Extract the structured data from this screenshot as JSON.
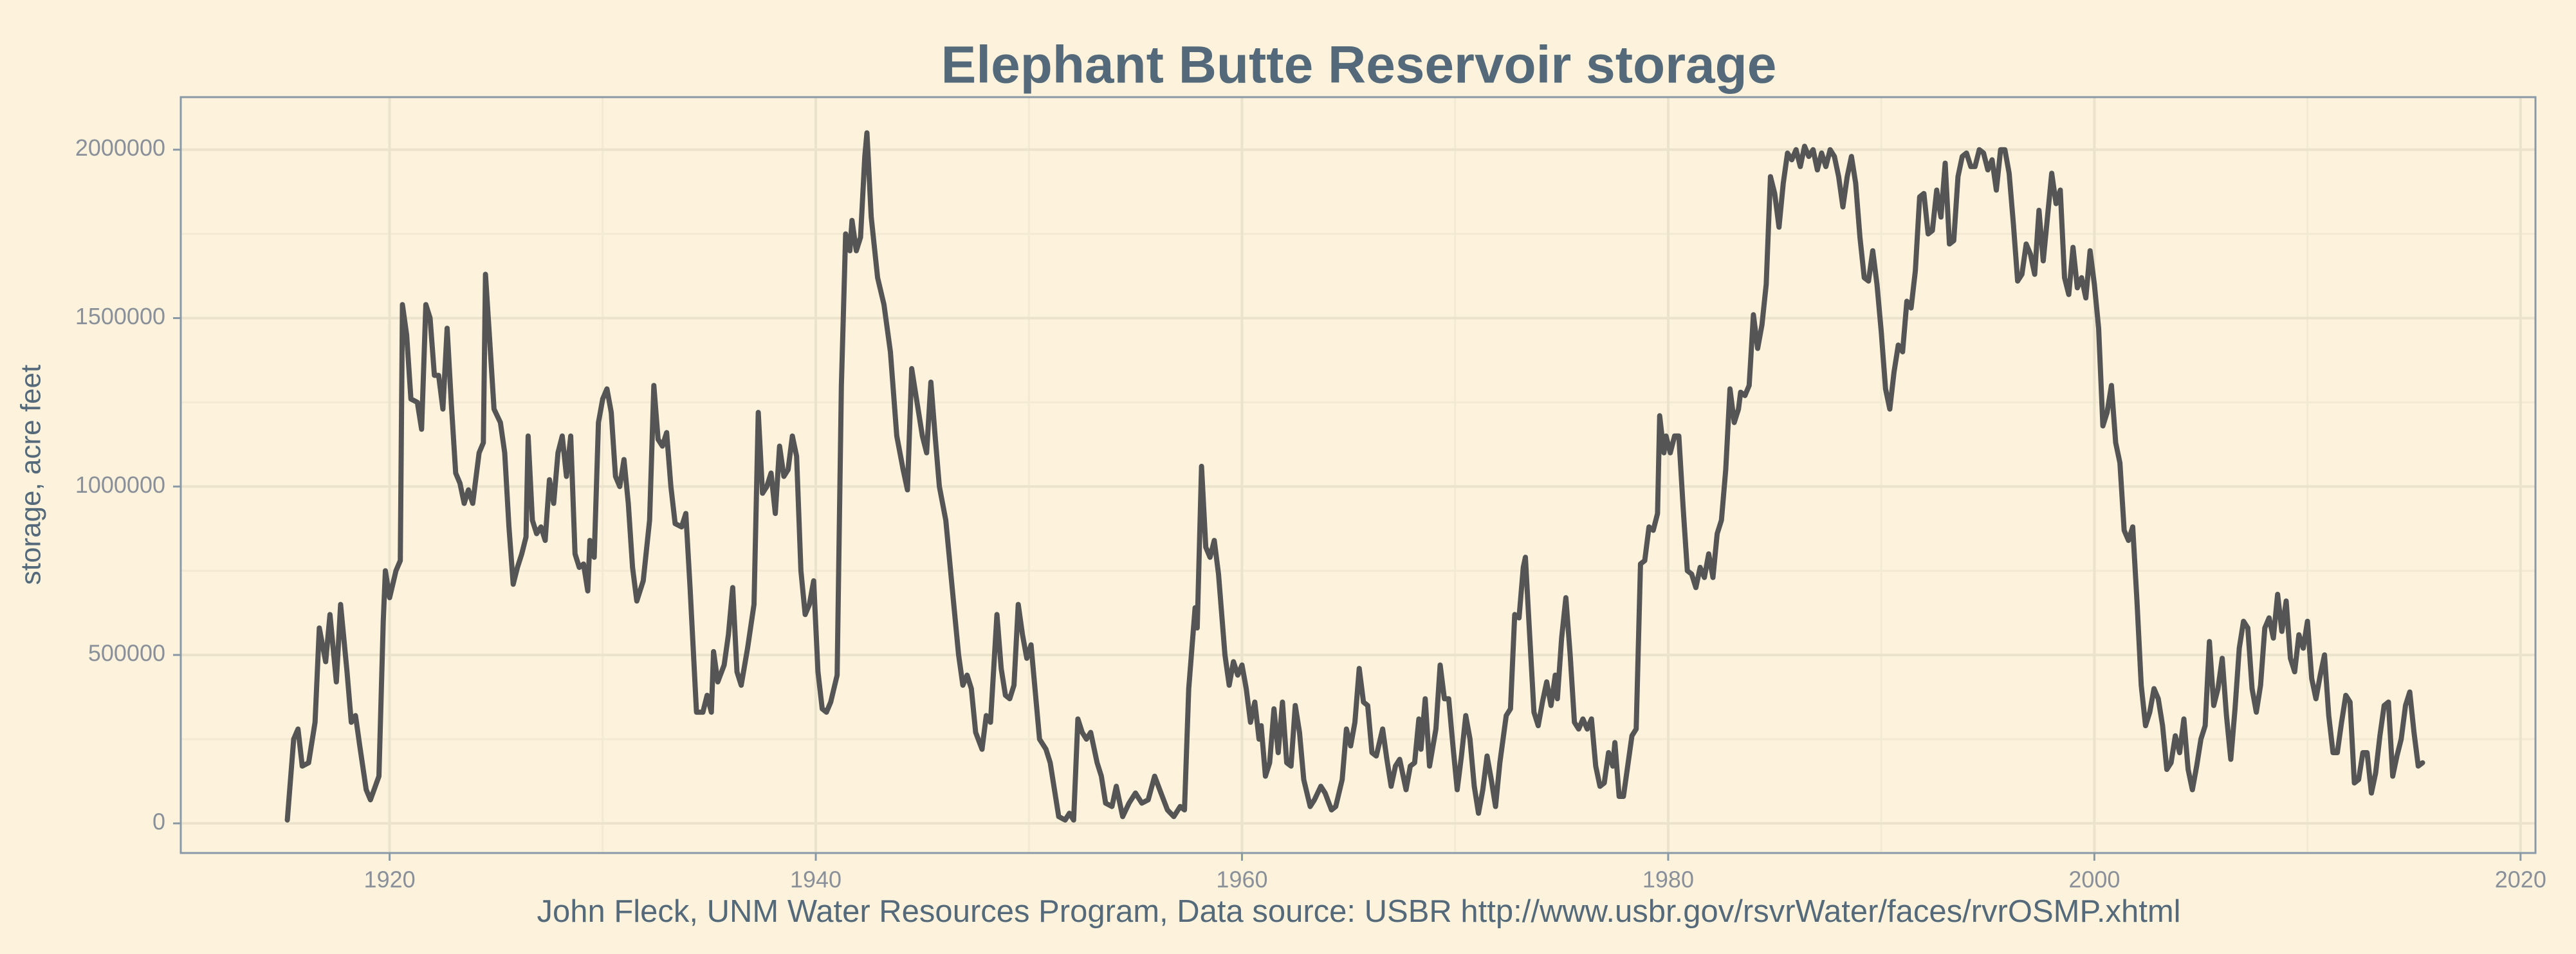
{
  "chart_data": {
    "type": "line",
    "title": "Elephant Butte Reservoir storage",
    "ylabel": "storage, acre feet",
    "caption": "John Fleck, UNM Water Resources Program, Data source: USBR http://www.usbr.gov/rsvrWater/faces/rvrOSMP.xhtml",
    "xlim": [
      1910.2,
      2020.7
    ],
    "xticks": [
      1920,
      1940,
      1960,
      1980,
      2000,
      2020
    ],
    "ylim": [
      -88000,
      2156000
    ],
    "yticks": [
      0,
      500000,
      1000000,
      1500000,
      2000000
    ],
    "grid": true,
    "series": [
      {
        "color": "#555555",
        "x": [
          1915.2,
          1915.5,
          1915.7,
          1915.9,
          1916.2,
          1916.5,
          1916.7,
          1917.0,
          1917.2,
          1917.5,
          1917.7,
          1918.0,
          1918.2,
          1918.4,
          1918.6,
          1918.9,
          1919.1,
          1919.5,
          1919.7,
          1919.8,
          1920.0,
          1920.3,
          1920.5,
          1920.6,
          1920.8,
          1921.0,
          1921.3,
          1921.5,
          1921.7,
          1921.9,
          1922.1,
          1922.3,
          1922.5,
          1922.7,
          1922.9,
          1923.1,
          1923.3,
          1923.5,
          1923.7,
          1923.9,
          1924.2,
          1924.4,
          1924.5,
          1924.7,
          1924.9,
          1925.2,
          1925.4,
          1925.6,
          1925.8,
          1926.0,
          1926.2,
          1926.4,
          1926.5,
          1926.7,
          1926.9,
          1927.1,
          1927.3,
          1927.5,
          1927.7,
          1927.9,
          1928.1,
          1928.3,
          1928.5,
          1928.7,
          1928.9,
          1929.1,
          1929.3,
          1929.4,
          1929.6,
          1929.8,
          1930.0,
          1930.2,
          1930.4,
          1930.6,
          1930.8,
          1931.0,
          1931.2,
          1931.4,
          1931.6,
          1931.9,
          1932.2,
          1932.4,
          1932.6,
          1932.8,
          1933.0,
          1933.2,
          1933.4,
          1933.7,
          1933.9,
          1934.1,
          1934.4,
          1934.7,
          1934.9,
          1935.1,
          1935.2,
          1935.4,
          1935.7,
          1935.9,
          1936.1,
          1936.3,
          1936.5,
          1936.8,
          1937.1,
          1937.3,
          1937.5,
          1937.7,
          1937.9,
          1938.1,
          1938.3,
          1938.5,
          1938.7,
          1938.9,
          1939.1,
          1939.3,
          1939.5,
          1939.7,
          1939.9,
          1940.1,
          1940.3,
          1940.5,
          1940.7,
          1941.0,
          1941.2,
          1941.4,
          1941.6,
          1941.7,
          1941.9,
          1942.1,
          1942.3,
          1942.4,
          1942.6,
          1942.9,
          1943.2,
          1943.5,
          1943.8,
          1944.1,
          1944.3,
          1944.5,
          1944.7,
          1945.0,
          1945.2,
          1945.4,
          1945.6,
          1945.8,
          1946.1,
          1946.4,
          1946.7,
          1946.9,
          1947.1,
          1947.3,
          1947.5,
          1947.8,
          1948.0,
          1948.2,
          1948.5,
          1948.7,
          1948.9,
          1949.1,
          1949.3,
          1949.5,
          1949.7,
          1949.9,
          1950.1,
          1950.3,
          1950.5,
          1950.8,
          1951.0,
          1951.2,
          1951.4,
          1951.7,
          1951.9,
          1952.1,
          1952.3,
          1952.5,
          1952.7,
          1952.9,
          1953.2,
          1953.4,
          1953.6,
          1953.9,
          1954.1,
          1954.4,
          1954.7,
          1955.0,
          1955.3,
          1955.6,
          1955.9,
          1956.2,
          1956.5,
          1956.8,
          1957.1,
          1957.3,
          1957.5,
          1957.8,
          1957.9,
          1958.1,
          1958.3,
          1958.5,
          1958.7,
          1958.9,
          1959.2,
          1959.4,
          1959.6,
          1959.8,
          1960.0,
          1960.2,
          1960.4,
          1960.6,
          1960.8,
          1960.9,
          1961.1,
          1961.3,
          1961.5,
          1961.7,
          1961.9,
          1962.1,
          1962.3,
          1962.5,
          1962.7,
          1962.9,
          1963.2,
          1963.4,
          1963.7,
          1963.9,
          1964.2,
          1964.4,
          1964.7,
          1964.9,
          1965.1,
          1965.3,
          1965.5,
          1965.7,
          1965.9,
          1966.1,
          1966.3,
          1966.6,
          1966.8,
          1967.0,
          1967.2,
          1967.4,
          1967.7,
          1967.9,
          1968.1,
          1968.3,
          1968.4,
          1968.6,
          1968.8,
          1969.1,
          1969.3,
          1969.5,
          1969.7,
          1969.9,
          1970.1,
          1970.3,
          1970.5,
          1970.7,
          1970.9,
          1971.1,
          1971.3,
          1971.5,
          1971.7,
          1971.9,
          1972.1,
          1972.4,
          1972.6,
          1972.8,
          1973.0,
          1973.2,
          1973.3,
          1973.5,
          1973.7,
          1973.9,
          1974.1,
          1974.3,
          1974.5,
          1974.7,
          1974.8,
          1975.0,
          1975.2,
          1975.4,
          1975.6,
          1975.8,
          1976.0,
          1976.2,
          1976.4,
          1976.6,
          1976.8,
          1977.0,
          1977.2,
          1977.4,
          1977.5,
          1977.7,
          1977.9,
          1978.1,
          1978.3,
          1978.5,
          1978.7,
          1978.9,
          1979.1,
          1979.3,
          1979.5,
          1979.6,
          1979.8,
          1979.9,
          1980.1,
          1980.3,
          1980.5,
          1980.7,
          1980.9,
          1981.1,
          1981.3,
          1981.5,
          1981.7,
          1981.9,
          1982.1,
          1982.3,
          1982.5,
          1982.7,
          1982.9,
          1983.1,
          1983.3,
          1983.4,
          1983.6,
          1983.8,
          1984.0,
          1984.2,
          1984.4,
          1984.6,
          1984.8,
          1985.0,
          1985.2,
          1985.4,
          1985.6,
          1985.8,
          1986.0,
          1986.2,
          1986.4,
          1986.6,
          1986.8,
          1987.0,
          1987.2,
          1987.4,
          1987.6,
          1987.8,
          1988.0,
          1988.2,
          1988.4,
          1988.6,
          1988.8,
          1989.0,
          1989.2,
          1989.4,
          1989.6,
          1989.8,
          1990.0,
          1990.2,
          1990.4,
          1990.6,
          1990.8,
          1991.0,
          1991.2,
          1991.4,
          1991.6,
          1991.8,
          1992.0,
          1992.2,
          1992.4,
          1992.6,
          1992.8,
          1993.0,
          1993.2,
          1993.4,
          1993.6,
          1993.8,
          1994.0,
          1994.2,
          1994.4,
          1994.6,
          1994.8,
          1995.0,
          1995.2,
          1995.4,
          1995.6,
          1995.8,
          1996.0,
          1996.2,
          1996.4,
          1996.6,
          1996.8,
          1997.0,
          1997.2,
          1997.4,
          1997.6,
          1997.8,
          1998.0,
          1998.2,
          1998.4,
          1998.6,
          1998.8,
          1999.0,
          1999.2,
          1999.4,
          1999.6,
          1999.8,
          2000.0,
          2000.2,
          2000.4,
          2000.6,
          2000.8,
          2001.0,
          2001.2,
          2001.4,
          2001.6,
          2001.8,
          2002.0,
          2002.2,
          2002.4,
          2002.6,
          2002.8,
          2003.0,
          2003.2,
          2003.4,
          2003.6,
          2003.8,
          2004.0,
          2004.2,
          2004.4,
          2004.6,
          2004.8,
          2005.0,
          2005.2,
          2005.4,
          2005.6,
          2005.8,
          2006.0,
          2006.2,
          2006.4,
          2006.6,
          2006.8,
          2007.0,
          2007.2,
          2007.4,
          2007.6,
          2007.8,
          2008.0,
          2008.2,
          2008.4,
          2008.6,
          2008.8,
          2009.0,
          2009.2,
          2009.4,
          2009.6,
          2009.8,
          2010.0,
          2010.2,
          2010.4,
          2010.6,
          2010.8,
          2011.0,
          2011.2,
          2011.4,
          2011.6,
          2011.8,
          2012.0,
          2012.2,
          2012.4,
          2012.6,
          2012.8,
          2013.0,
          2013.2,
          2013.4,
          2013.6,
          2013.8,
          2014.0,
          2014.2,
          2014.4,
          2014.6,
          2014.8,
          2015.0,
          2015.2,
          2015.4
        ],
        "values": [
          10000,
          250000,
          280000,
          170000,
          180000,
          300000,
          580000,
          480000,
          620000,
          420000,
          650000,
          450000,
          300000,
          320000,
          230000,
          100000,
          70000,
          140000,
          600000,
          750000,
          670000,
          750000,
          780000,
          1540000,
          1450000,
          1260000,
          1250000,
          1170000,
          1540000,
          1500000,
          1330000,
          1330000,
          1230000,
          1470000,
          1240000,
          1040000,
          1010000,
          950000,
          990000,
          950000,
          1100000,
          1130000,
          1630000,
          1430000,
          1230000,
          1190000,
          1100000,
          880000,
          710000,
          760000,
          800000,
          850000,
          1150000,
          900000,
          860000,
          880000,
          840000,
          1020000,
          950000,
          1100000,
          1150000,
          1030000,
          1150000,
          800000,
          760000,
          770000,
          690000,
          840000,
          790000,
          1190000,
          1260000,
          1290000,
          1220000,
          1030000,
          1000000,
          1080000,
          950000,
          760000,
          660000,
          720000,
          900000,
          1300000,
          1140000,
          1120000,
          1160000,
          1000000,
          890000,
          880000,
          920000,
          700000,
          330000,
          330000,
          380000,
          330000,
          510000,
          420000,
          470000,
          560000,
          700000,
          450000,
          410000,
          520000,
          650000,
          1220000,
          980000,
          1000000,
          1040000,
          920000,
          1120000,
          1030000,
          1050000,
          1150000,
          1090000,
          750000,
          620000,
          650000,
          720000,
          450000,
          340000,
          330000,
          360000,
          440000,
          1300000,
          1750000,
          1700000,
          1790000,
          1700000,
          1740000,
          1980000,
          2050000,
          1800000,
          1620000,
          1540000,
          1400000,
          1150000,
          1050000,
          990000,
          1350000,
          1270000,
          1150000,
          1100000,
          1310000,
          1150000,
          1000000,
          900000,
          700000,
          500000,
          410000,
          440000,
          400000,
          270000,
          220000,
          320000,
          300000,
          620000,
          460000,
          380000,
          370000,
          410000,
          650000,
          560000,
          490000,
          530000,
          390000,
          250000,
          220000,
          180000,
          100000,
          20000,
          10000,
          30000,
          10000,
          310000,
          270000,
          250000,
          270000,
          180000,
          140000,
          60000,
          50000,
          110000,
          20000,
          60000,
          90000,
          60000,
          70000,
          140000,
          90000,
          40000,
          20000,
          50000,
          40000,
          400000,
          640000,
          580000,
          1060000,
          820000,
          790000,
          840000,
          740000,
          500000,
          410000,
          480000,
          440000,
          470000,
          400000,
          300000,
          360000,
          250000,
          290000,
          140000,
          180000,
          340000,
          210000,
          360000,
          180000,
          170000,
          350000,
          270000,
          130000,
          50000,
          70000,
          110000,
          90000,
          40000,
          50000,
          130000,
          280000,
          230000,
          300000,
          460000,
          360000,
          350000,
          210000,
          200000,
          280000,
          190000,
          110000,
          170000,
          190000,
          100000,
          170000,
          180000,
          310000,
          220000,
          370000,
          170000,
          280000,
          470000,
          370000,
          370000,
          230000,
          100000,
          200000,
          320000,
          250000,
          110000,
          30000,
          100000,
          200000,
          130000,
          50000,
          180000,
          320000,
          340000,
          620000,
          610000,
          760000,
          790000,
          560000,
          330000,
          290000,
          360000,
          420000,
          350000,
          440000,
          370000,
          550000,
          670000,
          500000,
          300000,
          280000,
          310000,
          280000,
          310000,
          170000,
          110000,
          120000,
          210000,
          170000,
          240000,
          80000,
          80000,
          170000,
          260000,
          280000,
          770000,
          780000,
          880000,
          870000,
          920000,
          1210000,
          1100000,
          1150000,
          1100000,
          1150000,
          1150000,
          940000,
          750000,
          740000,
          700000,
          760000,
          730000,
          800000,
          730000,
          860000,
          900000,
          1050000,
          1290000,
          1190000,
          1230000,
          1280000,
          1270000,
          1300000,
          1510000,
          1410000,
          1480000,
          1600000,
          1920000,
          1870000,
          1770000,
          1900000,
          1990000,
          1970000,
          2000000,
          1950000,
          2010000,
          1980000,
          2000000,
          1940000,
          1990000,
          1950000,
          2000000,
          1980000,
          1920000,
          1830000,
          1920000,
          1980000,
          1900000,
          1740000,
          1620000,
          1610000,
          1700000,
          1600000,
          1460000,
          1290000,
          1230000,
          1340000,
          1420000,
          1400000,
          1550000,
          1530000,
          1640000,
          1860000,
          1870000,
          1750000,
          1760000,
          1880000,
          1800000,
          1960000,
          1720000,
          1730000,
          1920000,
          1980000,
          1990000,
          1950000,
          1950000,
          2000000,
          1990000,
          1940000,
          1970000,
          1880000,
          2000000,
          2000000,
          1930000,
          1780000,
          1610000,
          1630000,
          1720000,
          1690000,
          1630000,
          1820000,
          1670000,
          1800000,
          1930000,
          1840000,
          1880000,
          1620000,
          1570000,
          1710000,
          1590000,
          1620000,
          1560000,
          1700000,
          1600000,
          1470000,
          1180000,
          1220000,
          1300000,
          1130000,
          1070000,
          870000,
          840000,
          880000,
          660000,
          410000,
          290000,
          330000,
          400000,
          370000,
          290000,
          160000,
          180000,
          260000,
          210000,
          310000,
          160000,
          100000,
          170000,
          250000,
          290000,
          540000,
          350000,
          400000,
          490000,
          320000,
          190000,
          340000,
          520000,
          600000,
          580000,
          400000,
          330000,
          410000,
          580000,
          610000,
          550000,
          680000,
          570000,
          660000,
          490000,
          450000,
          560000,
          520000,
          600000,
          430000,
          370000,
          440000,
          500000,
          320000,
          210000,
          210000,
          300000,
          380000,
          360000,
          120000,
          130000,
          210000,
          210000,
          90000,
          150000,
          260000,
          350000,
          360000,
          140000,
          200000,
          250000,
          350000,
          390000,
          270000,
          170000,
          180000
        ]
      }
    ]
  }
}
